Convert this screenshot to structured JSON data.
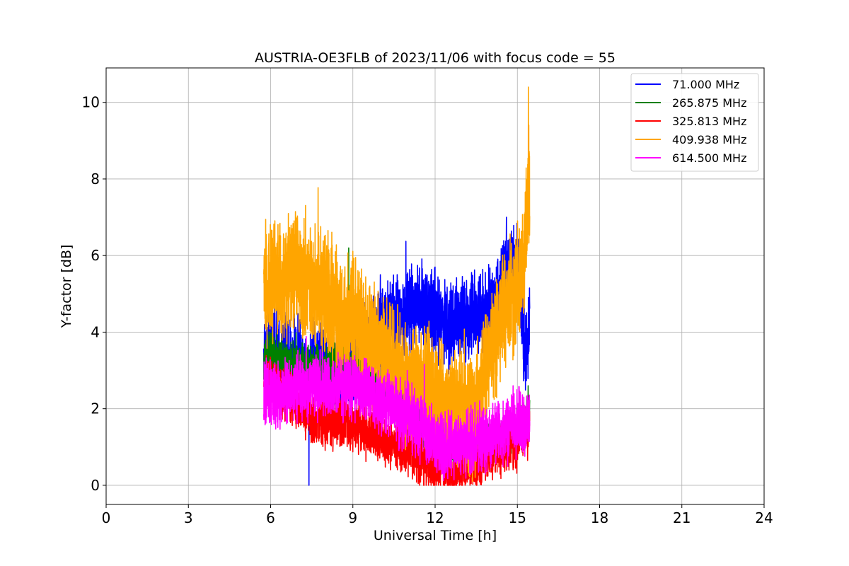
{
  "chart_data": {
    "type": "line",
    "title": "AUSTRIA-OE3FLB of 2023/11/06 with focus code = 55",
    "xlabel": "Universal Time [h]",
    "ylabel": "Y-factor [dB]",
    "xlim": [
      0,
      24
    ],
    "ylim": [
      -0.5,
      10.9
    ],
    "xticks": [
      0,
      3,
      6,
      9,
      12,
      15,
      18,
      21,
      24
    ],
    "yticks": [
      0,
      2,
      4,
      6,
      8,
      10
    ],
    "grid": true,
    "legend_position": "top-right",
    "series": [
      {
        "name": "71.000 MHz",
        "color": "#0000ff",
        "x": [
          5.75,
          6.0,
          6.5,
          7.0,
          7.4,
          7.5,
          8.0,
          8.5,
          9.0,
          9.5,
          10.0,
          10.5,
          11.0,
          11.5,
          12.0,
          12.5,
          13.0,
          13.5,
          14.0,
          14.5,
          15.0,
          15.3,
          15.45
        ],
        "y": [
          3.3,
          3.6,
          3.4,
          3.2,
          3.0,
          3.3,
          3.1,
          3.0,
          3.2,
          3.6,
          4.0,
          4.3,
          4.5,
          4.7,
          4.4,
          4.2,
          4.3,
          4.5,
          4.6,
          5.2,
          5.8,
          3.2,
          4.6
        ],
        "min_value": 0.0,
        "max_value": 7.0
      },
      {
        "name": "265.875 MHz",
        "color": "#008000",
        "x": [
          5.75,
          6.0,
          6.5,
          7.0,
          7.5,
          8.0,
          8.5,
          9.0,
          9.5,
          10.0,
          10.5,
          11.0,
          11.5,
          12.0,
          12.5,
          13.0,
          13.5,
          14.0,
          14.5,
          15.0,
          15.45
        ],
        "y": [
          3.3,
          3.4,
          3.2,
          3.1,
          3.0,
          3.0,
          3.1,
          3.1,
          2.8,
          2.5,
          2.3,
          2.0,
          1.6,
          1.2,
          0.9,
          0.8,
          0.9,
          1.1,
          1.3,
          1.4,
          2.0
        ],
        "max_value": 6.2
      },
      {
        "name": "325.813 MHz",
        "color": "#ff0000",
        "x": [
          5.75,
          6.0,
          6.5,
          7.0,
          7.5,
          8.0,
          8.5,
          9.0,
          9.5,
          10.0,
          10.5,
          11.0,
          11.5,
          12.0,
          12.5,
          13.0,
          13.5,
          14.0,
          14.5,
          15.0,
          15.45
        ],
        "y": [
          2.6,
          2.7,
          2.4,
          2.1,
          1.8,
          1.7,
          1.7,
          1.6,
          1.4,
          1.2,
          1.1,
          0.9,
          0.7,
          0.5,
          0.4,
          0.5,
          0.6,
          0.8,
          1.0,
          1.1,
          1.5
        ]
      },
      {
        "name": "409.938 MHz",
        "color": "#ffa500",
        "x": [
          5.75,
          6.0,
          6.5,
          7.0,
          7.5,
          8.0,
          8.5,
          9.0,
          9.5,
          10.0,
          10.5,
          11.0,
          11.5,
          12.0,
          12.5,
          13.0,
          13.5,
          14.0,
          14.5,
          15.0,
          15.25,
          15.45
        ],
        "y": [
          5.0,
          5.4,
          5.5,
          5.6,
          5.2,
          5.0,
          4.5,
          4.3,
          4.0,
          3.5,
          3.1,
          2.8,
          2.6,
          2.4,
          2.2,
          1.8,
          2.0,
          3.5,
          4.5,
          5.0,
          6.2,
          8.2
        ],
        "max_value": 10.4
      },
      {
        "name": "614.500 MHz",
        "color": "#ff00ff",
        "x": [
          5.75,
          6.0,
          6.5,
          7.0,
          7.5,
          8.0,
          8.5,
          9.0,
          9.5,
          10.0,
          10.5,
          11.0,
          11.5,
          12.0,
          12.5,
          13.0,
          13.5,
          14.0,
          14.5,
          15.0,
          15.45
        ],
        "y": [
          2.3,
          2.5,
          2.4,
          2.5,
          2.6,
          2.6,
          2.6,
          2.6,
          2.5,
          2.2,
          2.0,
          1.8,
          1.5,
          1.1,
          1.0,
          1.1,
          1.2,
          1.3,
          1.5,
          1.6,
          1.8
        ]
      }
    ]
  }
}
